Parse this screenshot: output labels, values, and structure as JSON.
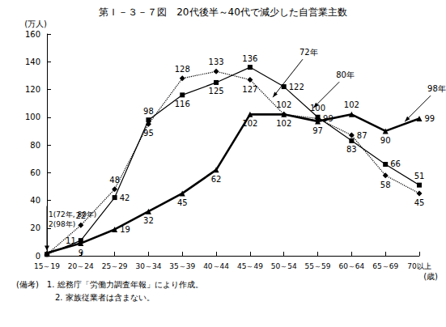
{
  "chart_data": {
    "type": "line",
    "title": "第Ｉ－３－７図　20代後半～40代で減少した自営業主数",
    "y_label": "(万人)",
    "x_label": "(歳)",
    "categories": [
      "15～19",
      "20～24",
      "25～29",
      "30～34",
      "35～39",
      "40～44",
      "45～49",
      "50～54",
      "55～59",
      "60～64",
      "65～69",
      "70以上"
    ],
    "series": [
      {
        "name": "72年",
        "color": "#000000",
        "marker": "diamond",
        "line_style": "dotted",
        "values": [
          1,
          22,
          48,
          95,
          128,
          133,
          127,
          102,
          99,
          87,
          58,
          45
        ],
        "value_labels": [
          null,
          "22",
          "48",
          "95",
          "128",
          "133",
          "127",
          "102",
          "99",
          "87",
          "58",
          "45"
        ]
      },
      {
        "name": "80年",
        "color": "#000000",
        "marker": "square",
        "line_style": "solid",
        "values": [
          1,
          11,
          42,
          98,
          116,
          125,
          136,
          122,
          100,
          83,
          66,
          51
        ],
        "value_labels": [
          null,
          "11",
          "42",
          "98",
          "116",
          "125",
          "136",
          "122",
          "100",
          "83",
          "66",
          "51"
        ]
      },
      {
        "name": "98年",
        "color": "#000000",
        "marker": "triangle",
        "line_style": "solid",
        "values": [
          2,
          9,
          19,
          32,
          45,
          62,
          102,
          102,
          97,
          102,
          90,
          99
        ],
        "value_labels": [
          null,
          "9",
          "19",
          "32",
          "45",
          "62",
          "102",
          "102",
          "97",
          "102",
          "90",
          "99"
        ]
      }
    ],
    "ylim": [
      0,
      160
    ],
    "yticks": [
      0,
      20,
      40,
      60,
      80,
      100,
      120,
      140,
      160
    ],
    "grid": false,
    "data_labels": true,
    "annotations": [
      "1(72年, 80年)",
      "2(98年)"
    ],
    "notes": [
      "(備考)　1. 総務庁「労働力調査年報」により作成。",
      "2. 家族従業者は含まない。"
    ]
  }
}
